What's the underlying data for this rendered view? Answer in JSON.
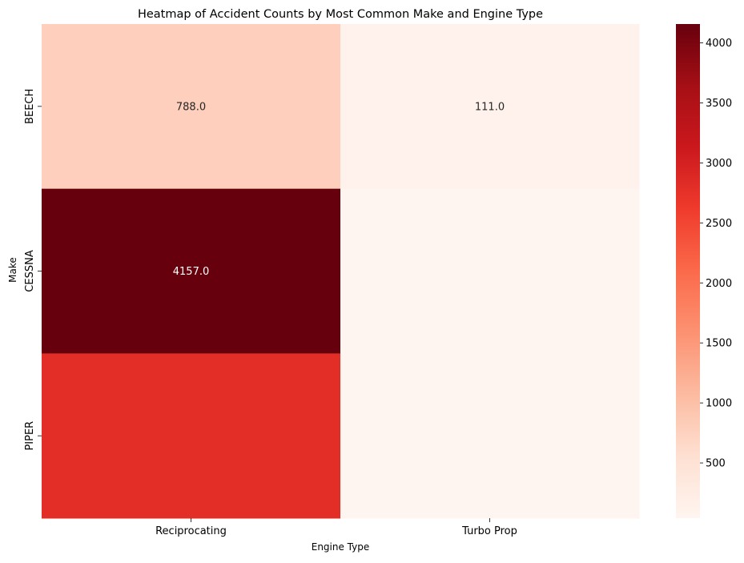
{
  "chart_data": {
    "type": "heatmap",
    "title": "Heatmap of Accident Counts by Most Common Make and Engine Type",
    "xlabel": "Engine Type",
    "ylabel": "Make",
    "x_categories": [
      "Reciprocating",
      "Turbo Prop"
    ],
    "y_categories": [
      "BEECH",
      "CESSNA",
      "PIPER"
    ],
    "values": [
      [
        788.0,
        111.0
      ],
      [
        4157.0,
        40
      ],
      [
        2800,
        40
      ]
    ],
    "annotations": [
      [
        "788.0",
        "111.0"
      ],
      [
        "4157.0",
        ""
      ],
      [
        "",
        ""
      ]
    ],
    "colormap": "Reds",
    "colorbar": {
      "range": [
        40,
        4157
      ],
      "ticks": [
        500,
        1000,
        1500,
        2000,
        2500,
        3000,
        3500,
        4000
      ],
      "tick_labels": [
        "500",
        "1000",
        "1500",
        "2000",
        "2500",
        "3000",
        "3500",
        "4000"
      ]
    }
  }
}
